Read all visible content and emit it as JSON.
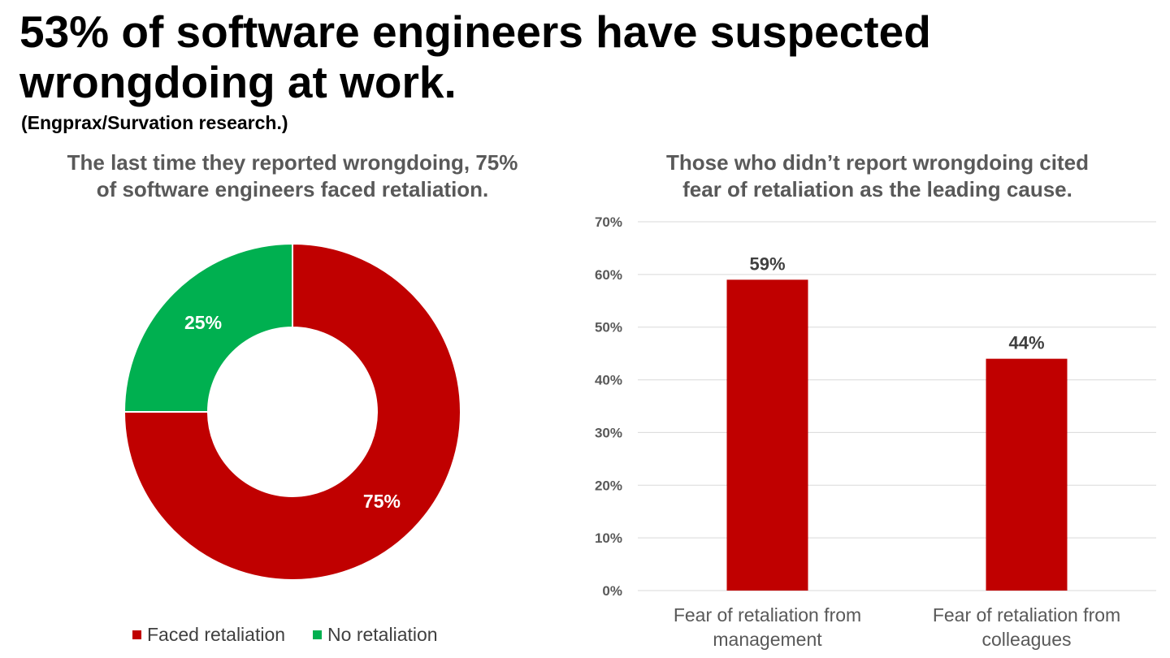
{
  "header": {
    "title_line1": "53% of software engineers have suspected",
    "title_line2": "wrongdoing at work.",
    "source": "(Engprax/Survation research.)"
  },
  "colors": {
    "red": "#c00000",
    "green": "#00b050",
    "grid": "#d9d9d9",
    "axis_text": "#595959",
    "label_text": "#404040"
  },
  "chart_data": [
    {
      "type": "pie",
      "subtype": "donut",
      "title_line1": "The last time they reported wrongdoing, 75%",
      "title_line2": "of software engineers faced retaliation.",
      "slices": [
        {
          "label": "Faced retaliation",
          "value": 75,
          "display": "75%",
          "color": "#c00000"
        },
        {
          "label": "No retaliation",
          "value": 25,
          "display": "25%",
          "color": "#00b050"
        }
      ],
      "legend_position": "bottom"
    },
    {
      "type": "bar",
      "title_line1": "Those who didn’t report wrongdoing cited",
      "title_line2": "fear of retaliation as the leading cause.",
      "categories": [
        [
          "Fear of retaliation from",
          "management"
        ],
        [
          "Fear of retaliation from",
          "colleagues"
        ]
      ],
      "values": [
        59,
        44
      ],
      "value_labels": [
        "59%",
        "44%"
      ],
      "ylim": [
        0,
        70
      ],
      "yticks": [
        "0%",
        "10%",
        "20%",
        "30%",
        "40%",
        "50%",
        "60%",
        "70%"
      ],
      "ytick_values": [
        0,
        10,
        20,
        30,
        40,
        50,
        60,
        70
      ],
      "grid": true,
      "color": "#c00000"
    }
  ]
}
